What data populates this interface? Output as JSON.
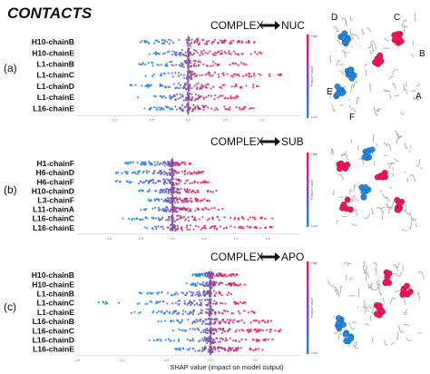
{
  "title": "CONTACTS",
  "colors": {
    "low": "#1e88e5",
    "high": "#ff0d57",
    "zero_line": "#999999",
    "arrow": "#111111",
    "spine": "#cccccc",
    "protein": "#9a9a9a"
  },
  "feature_value_axis": {
    "label": "Feature value",
    "high_label": "High",
    "low_label": "Low"
  },
  "xlabel": "SHAP value (impact on model output)",
  "chart_data": [
    {
      "type": "scatter",
      "panel_label": "(a)",
      "header": {
        "from": "COMPLEX",
        "to": "NUC"
      },
      "xlabel": "",
      "features": [
        "H10-chainB",
        "H10-chainE",
        "L1-chainB",
        "L1-chainC",
        "L1-chainD",
        "L1-chainE",
        "L16-chainE"
      ],
      "xlim": [
        -1.5,
        1.5
      ],
      "xticks": [
        -1.0,
        -0.5,
        0.0,
        0.5,
        1.0
      ],
      "spread": [
        {
          "lo": -0.7,
          "hi": 0.9
        },
        {
          "lo": -0.6,
          "hi": 1.0
        },
        {
          "lo": -0.7,
          "hi": 0.8
        },
        {
          "lo": -0.6,
          "hi": 1.3
        },
        {
          "lo": -0.8,
          "hi": 1.0
        },
        {
          "lo": -0.7,
          "hi": 0.7
        },
        {
          "lo": -0.6,
          "hi": 0.9
        }
      ]
    },
    {
      "type": "scatter",
      "panel_label": "(b)",
      "header": {
        "from": "COMPLEX",
        "to": "SUB"
      },
      "xlabel": "",
      "features": [
        "H1-chainF",
        "H6-chainD",
        "H6-chainF",
        "H10-chainD",
        "L3-chainF",
        "L11-chainA",
        "L16-chainC",
        "L16-chainE"
      ],
      "xlim": [
        -1.5,
        2.0
      ],
      "xticks": [
        -1.0,
        -0.5,
        0.0,
        0.5,
        1.0,
        1.5
      ],
      "spread": [
        {
          "lo": -0.8,
          "hi": 0.3
        },
        {
          "lo": -0.9,
          "hi": 0.5
        },
        {
          "lo": -1.1,
          "hi": 0.6
        },
        {
          "lo": -0.6,
          "hi": 0.7
        },
        {
          "lo": -0.4,
          "hi": 0.6
        },
        {
          "lo": -0.5,
          "hi": 0.8
        },
        {
          "lo": -0.8,
          "hi": 1.6
        },
        {
          "lo": -0.6,
          "hi": 1.6
        }
      ]
    },
    {
      "type": "scatter",
      "panel_label": "(c)",
      "header": {
        "from": "COMPLEX",
        "to": "APO"
      },
      "xlabel": "",
      "features": [
        "H10-chainB",
        "H10-chainE",
        "L1-chainB",
        "L1-chainC",
        "L1-chainE",
        "L16-chainB",
        "L16-chainC",
        "L16-chainD",
        "L16-chainE"
      ],
      "xlim": [
        -1.5,
        1.0
      ],
      "xticks": [
        -1.5,
        -1.0,
        -0.5,
        0.0,
        0.5
      ],
      "spread": [
        {
          "lo": -0.2,
          "hi": 0.3
        },
        {
          "lo": -0.3,
          "hi": 0.4
        },
        {
          "lo": -0.8,
          "hi": 0.3
        },
        {
          "lo": -1.3,
          "hi": 0.4
        },
        {
          "lo": -0.9,
          "hi": 0.5
        },
        {
          "lo": -0.6,
          "hi": 0.7
        },
        {
          "lo": -0.5,
          "hi": 0.8
        },
        {
          "lo": -0.7,
          "hi": 0.7
        },
        {
          "lo": -0.4,
          "hi": 0.6
        }
      ]
    }
  ],
  "structure_labels": [
    "D",
    "C",
    "B",
    "E",
    "A",
    "F"
  ]
}
